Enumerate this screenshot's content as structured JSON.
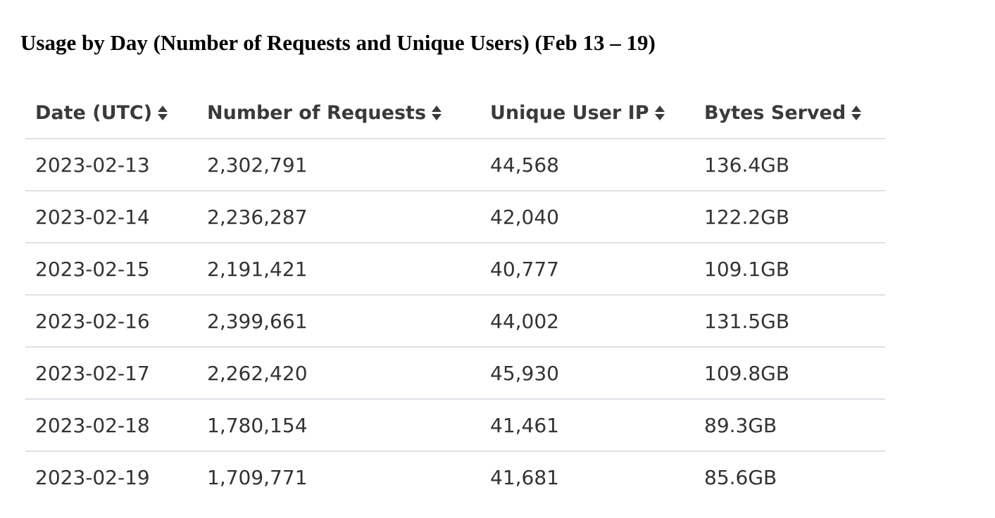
{
  "page": {
    "title": "Usage by Day (Number of Requests and Unique Users) (Feb 13 – 19)"
  },
  "table": {
    "columns": [
      {
        "label": "Date (UTC)",
        "sort_icon": "sort-icon"
      },
      {
        "label": "Number of Requests",
        "sort_icon": "sort-icon"
      },
      {
        "label": "Unique User IP",
        "sort_icon": "sort-icon"
      },
      {
        "label": "Bytes Served",
        "sort_icon": "sort-icon"
      }
    ],
    "rows": [
      [
        "2023-02-13",
        "2,302,791",
        "44,568",
        "136.4GB"
      ],
      [
        "2023-02-14",
        "2,236,287",
        "42,040",
        "122.2GB"
      ],
      [
        "2023-02-15",
        "2,191,421",
        "40,777",
        "109.1GB"
      ],
      [
        "2023-02-16",
        "2,399,661",
        "44,002",
        "131.5GB"
      ],
      [
        "2023-02-17",
        "2,262,420",
        "45,930",
        "109.8GB"
      ],
      [
        "2023-02-18",
        "1,780,154",
        "41,461",
        "89.3GB"
      ],
      [
        "2023-02-19",
        "1,709,771",
        "41,681",
        "85.6GB"
      ]
    ]
  },
  "colors": {
    "text": "#333333",
    "header_text": "#3a3a3a",
    "row_border": "#dde1e6",
    "background": "#ffffff"
  }
}
